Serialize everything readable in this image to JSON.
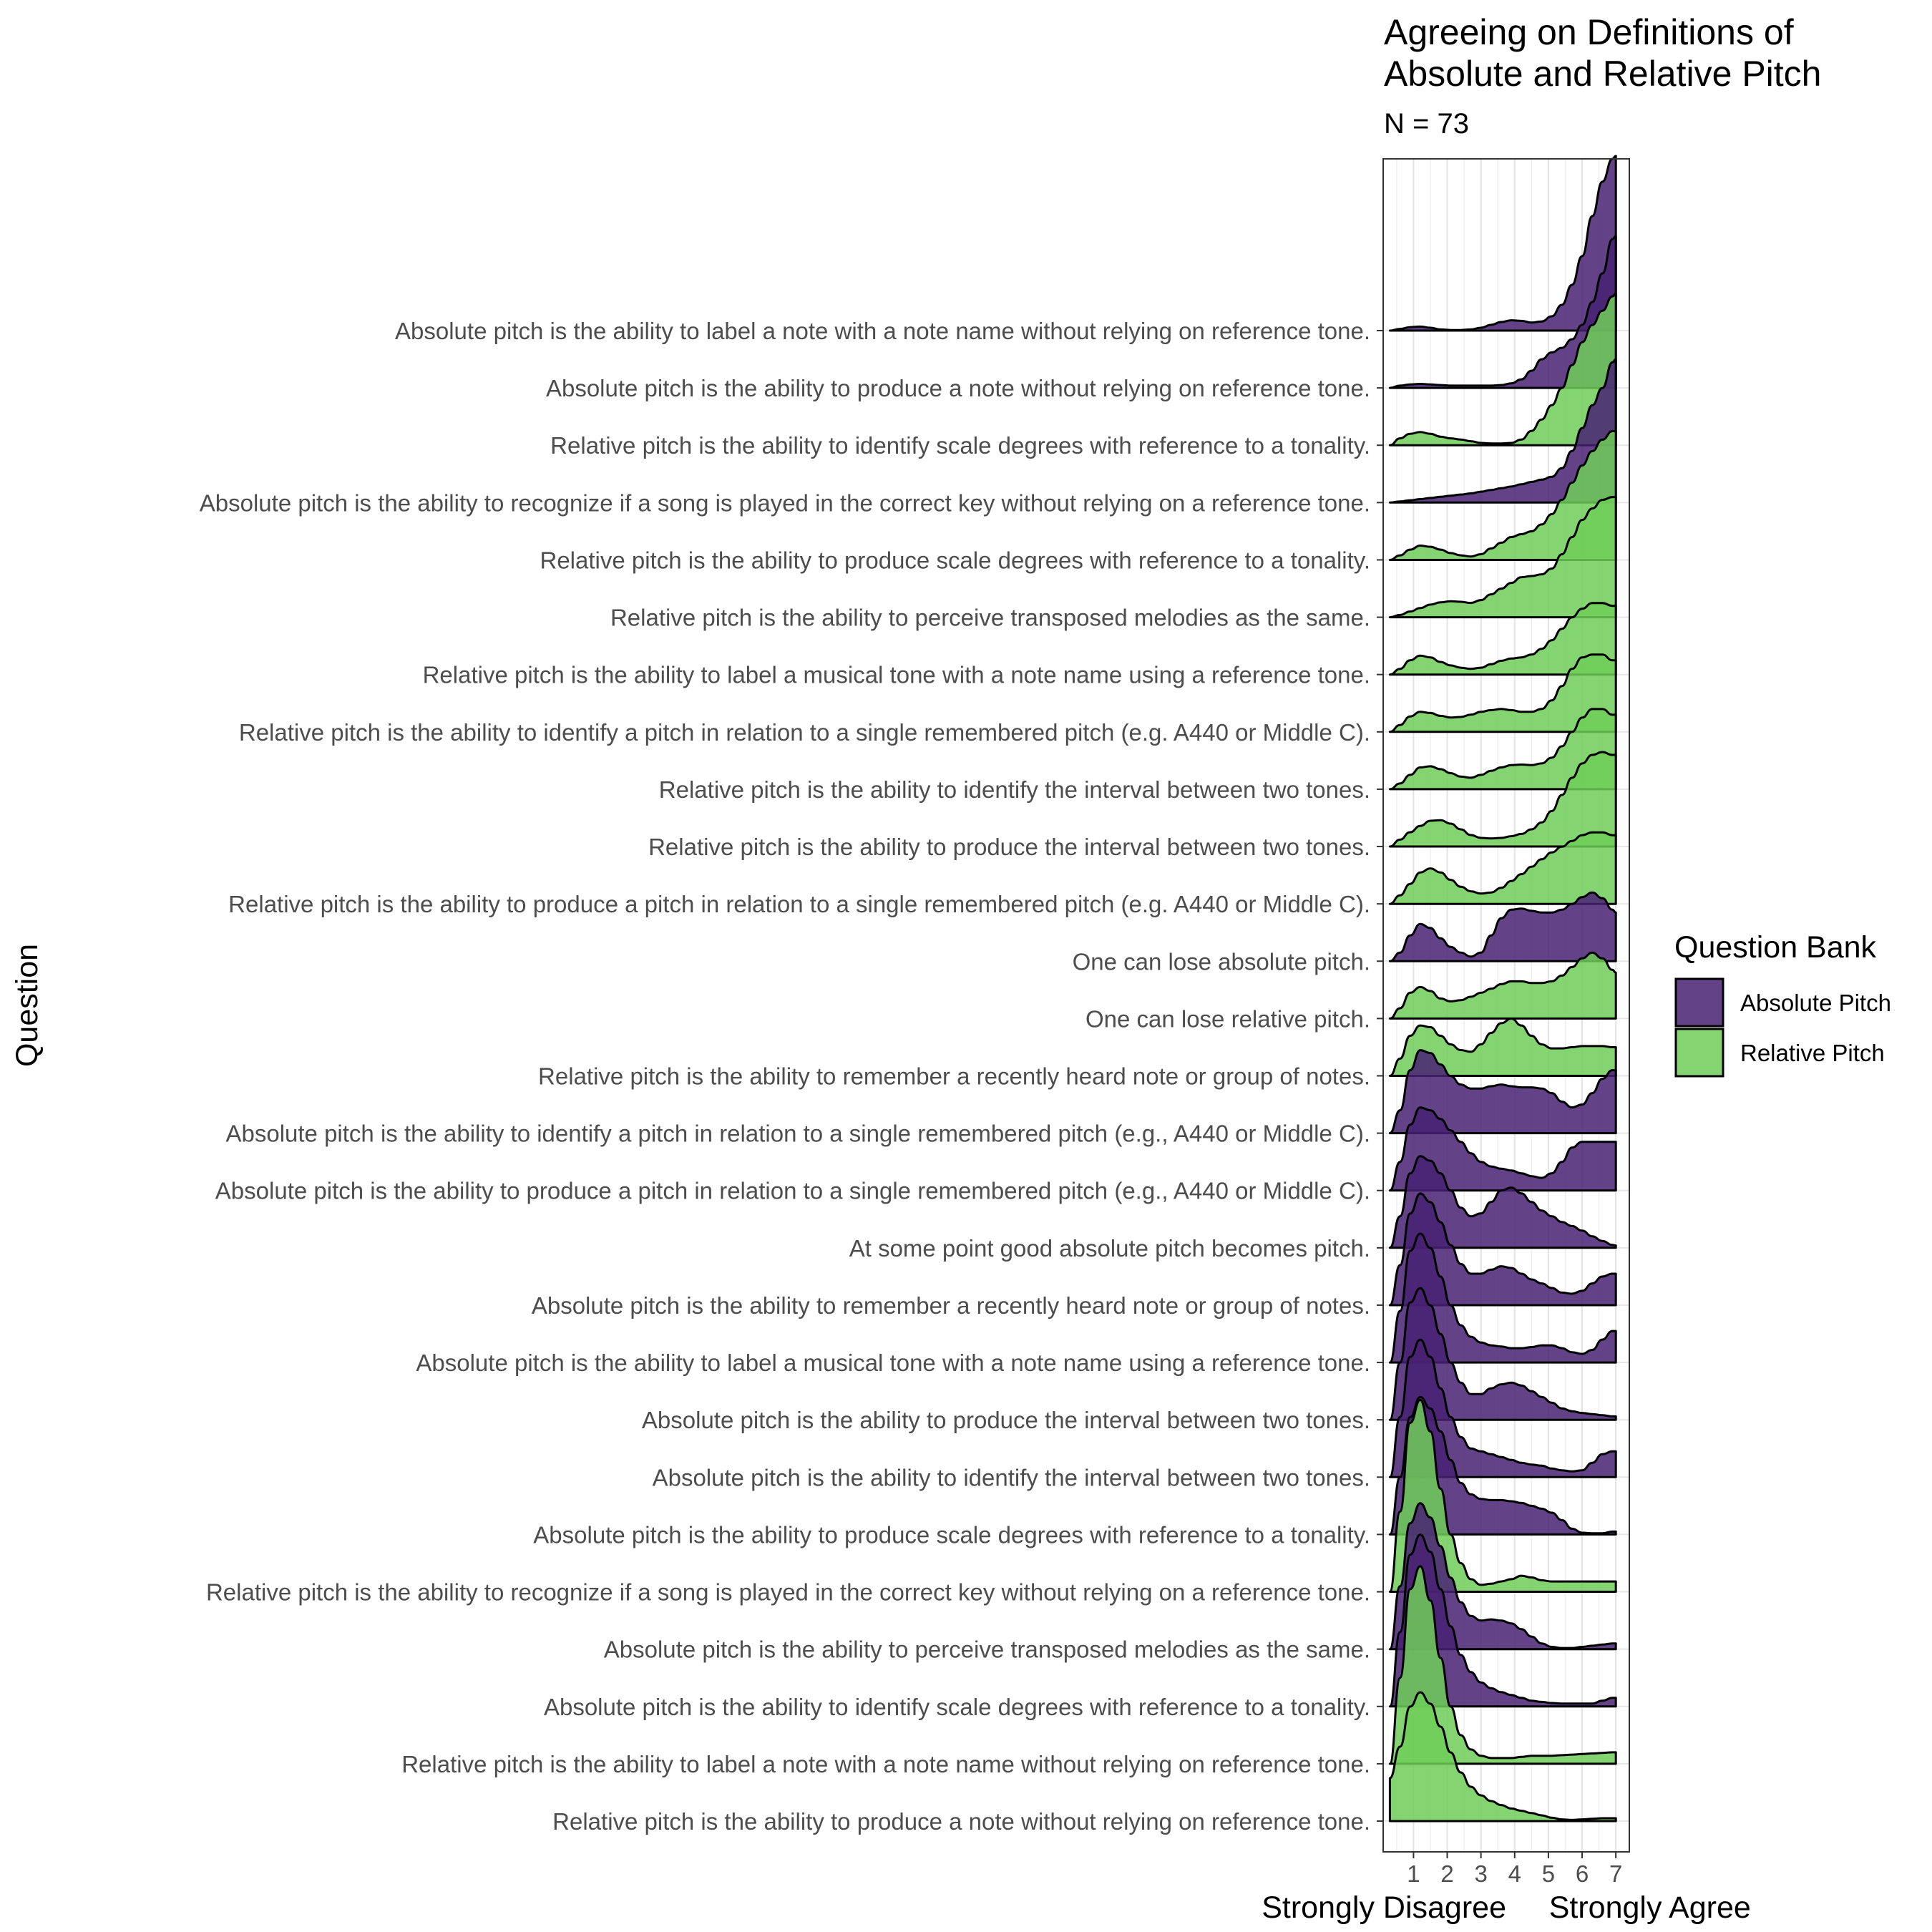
{
  "chart_data": {
    "type": "ridgeline-density",
    "title_lines": [
      "Agreeing on Definitions of",
      "Absolute and Relative Pitch"
    ],
    "subtitle": "N =  73",
    "xlabel": "Strongly Disagree     Strongly Agree",
    "ylabel": "Question",
    "x_ticks": [
      "1",
      "2",
      "3",
      "4",
      "5",
      "6",
      "7"
    ],
    "xlim": [
      0.1,
      7.4
    ],
    "legend": {
      "title": "Question Bank",
      "entries": [
        {
          "label": "Absolute Pitch",
          "color": "#482173"
        },
        {
          "label": "Relative Pitch",
          "color": "#6ece58"
        }
      ]
    },
    "colors": {
      "Absolute Pitch": "#482173",
      "Relative Pitch": "#6ece58",
      "grid": "#ebebeb",
      "outline": "#000000"
    },
    "x": [
      0.3,
      0.6,
      0.9,
      1.2,
      1.5,
      1.8,
      2.1,
      2.4,
      2.7,
      3.0,
      3.3,
      3.6,
      3.9,
      4.2,
      4.5,
      4.8,
      5.1,
      5.4,
      5.7,
      6.0,
      6.3,
      6.6,
      6.9,
      7.0
    ],
    "questions": [
      {
        "label": "Absolute pitch is the ability to label a note with a note name without relying on reference tone.",
        "bank": "Absolute Pitch",
        "density": [
          0.0,
          0.03,
          0.06,
          0.07,
          0.05,
          0.02,
          0.01,
          0.01,
          0.02,
          0.05,
          0.1,
          0.15,
          0.18,
          0.17,
          0.14,
          0.16,
          0.25,
          0.45,
          0.8,
          1.3,
          2.0,
          2.6,
          3.0,
          3.05
        ]
      },
      {
        "label": "Absolute pitch is the ability to produce a note without relying on reference tone.",
        "bank": "Absolute Pitch",
        "density": [
          0.0,
          0.04,
          0.06,
          0.07,
          0.06,
          0.05,
          0.04,
          0.04,
          0.04,
          0.04,
          0.04,
          0.05,
          0.08,
          0.15,
          0.3,
          0.5,
          0.62,
          0.7,
          0.85,
          1.1,
          1.5,
          2.0,
          2.6,
          2.65
        ]
      },
      {
        "label": "Relative pitch is the ability to identify scale degrees with reference to a tonality.",
        "bank": "Relative Pitch",
        "density": [
          0.0,
          0.12,
          0.2,
          0.23,
          0.2,
          0.15,
          0.12,
          0.1,
          0.07,
          0.04,
          0.03,
          0.03,
          0.04,
          0.1,
          0.25,
          0.45,
          0.7,
          1.0,
          1.4,
          1.8,
          2.1,
          2.35,
          2.6,
          2.65
        ]
      },
      {
        "label": "Absolute pitch is the ability to recognize if a song is played in the correct key without relying on a reference tone.",
        "bank": "Absolute Pitch",
        "density": [
          0.0,
          0.02,
          0.04,
          0.06,
          0.08,
          0.1,
          0.12,
          0.14,
          0.16,
          0.19,
          0.22,
          0.25,
          0.28,
          0.32,
          0.36,
          0.4,
          0.45,
          0.6,
          0.9,
          1.3,
          1.7,
          2.0,
          2.45,
          2.5
        ]
      },
      {
        "label": "Relative pitch is the ability to produce scale degrees with reference to a tonality.",
        "bank": "Relative Pitch",
        "density": [
          0.0,
          0.08,
          0.18,
          0.25,
          0.23,
          0.18,
          0.12,
          0.08,
          0.06,
          0.1,
          0.2,
          0.3,
          0.4,
          0.45,
          0.5,
          0.62,
          0.8,
          1.05,
          1.35,
          1.65,
          1.9,
          2.1,
          2.25,
          2.25
        ]
      },
      {
        "label": "Relative pitch is the ability to perceive transposed melodies as the same.",
        "bank": "Relative Pitch",
        "density": [
          0.0,
          0.04,
          0.1,
          0.16,
          0.22,
          0.26,
          0.28,
          0.27,
          0.25,
          0.3,
          0.4,
          0.5,
          0.6,
          0.7,
          0.72,
          0.75,
          0.85,
          1.1,
          1.4,
          1.7,
          1.9,
          2.05,
          2.1,
          2.1
        ]
      },
      {
        "label": "Relative pitch is the ability to label a musical tone with a note name using a reference tone.",
        "bank": "Relative Pitch",
        "density": [
          0.0,
          0.1,
          0.25,
          0.33,
          0.3,
          0.22,
          0.16,
          0.12,
          0.1,
          0.12,
          0.18,
          0.24,
          0.28,
          0.3,
          0.35,
          0.45,
          0.6,
          0.8,
          1.0,
          1.15,
          1.25,
          1.25,
          1.2,
          1.2
        ]
      },
      {
        "label": "Relative pitch is the ability to identify a pitch in relation to a single remembered pitch (e.g.  A440 or Middle C).",
        "bank": "Relative Pitch",
        "density": [
          0.0,
          0.12,
          0.27,
          0.35,
          0.33,
          0.28,
          0.25,
          0.26,
          0.3,
          0.35,
          0.38,
          0.4,
          0.38,
          0.35,
          0.35,
          0.4,
          0.55,
          0.8,
          1.1,
          1.3,
          1.35,
          1.35,
          1.25,
          1.25
        ]
      },
      {
        "label": "Relative pitch is the ability to identify the interval between two tones.",
        "bank": "Relative Pitch",
        "density": [
          0.0,
          0.1,
          0.25,
          0.38,
          0.4,
          0.35,
          0.28,
          0.22,
          0.2,
          0.25,
          0.32,
          0.38,
          0.42,
          0.43,
          0.42,
          0.45,
          0.55,
          0.75,
          1.0,
          1.25,
          1.4,
          1.4,
          1.3,
          1.3
        ]
      },
      {
        "label": "Relative pitch is the ability to produce the interval between two tones.",
        "bank": "Relative Pitch",
        "density": [
          0.0,
          0.12,
          0.25,
          0.36,
          0.45,
          0.46,
          0.4,
          0.3,
          0.2,
          0.15,
          0.14,
          0.15,
          0.18,
          0.22,
          0.3,
          0.42,
          0.62,
          0.9,
          1.2,
          1.45,
          1.6,
          1.65,
          1.6,
          1.6
        ]
      },
      {
        "label": "Relative pitch is the ability to produce a pitch in relation to a single remembered pitch (e.g. A440 or Middle C).",
        "bank": "Relative Pitch",
        "density": [
          0.0,
          0.15,
          0.35,
          0.55,
          0.62,
          0.55,
          0.42,
          0.3,
          0.22,
          0.18,
          0.2,
          0.28,
          0.4,
          0.52,
          0.65,
          0.78,
          0.9,
          1.0,
          1.1,
          1.2,
          1.25,
          1.25,
          1.2,
          1.2
        ]
      },
      {
        "label": "One can lose absolute pitch.",
        "bank": "Absolute Pitch",
        "density": [
          0.0,
          0.15,
          0.45,
          0.65,
          0.58,
          0.4,
          0.25,
          0.15,
          0.08,
          0.15,
          0.45,
          0.75,
          0.9,
          0.92,
          0.88,
          0.85,
          0.85,
          0.9,
          1.0,
          1.12,
          1.2,
          1.1,
          0.9,
          0.85
        ]
      },
      {
        "label": "One can lose relative pitch.",
        "bank": "Relative Pitch",
        "density": [
          0.0,
          0.18,
          0.45,
          0.55,
          0.48,
          0.35,
          0.3,
          0.32,
          0.38,
          0.45,
          0.52,
          0.6,
          0.65,
          0.65,
          0.62,
          0.62,
          0.65,
          0.75,
          0.9,
          1.05,
          1.15,
          1.05,
          0.85,
          0.8
        ]
      },
      {
        "label": "Relative pitch is the ability to remember a recently heard note or group of notes.",
        "bank": "Relative Pitch",
        "density": [
          0.0,
          0.3,
          0.7,
          0.88,
          0.85,
          0.7,
          0.55,
          0.45,
          0.42,
          0.55,
          0.75,
          0.92,
          1.0,
          0.88,
          0.7,
          0.55,
          0.48,
          0.48,
          0.5,
          0.52,
          0.52,
          0.52,
          0.5,
          0.5
        ]
      },
      {
        "label": "Absolute pitch is the ability to identify a pitch in relation to a single remembered pitch (e.g., A440 or Middle C).",
        "bank": "Absolute Pitch",
        "density": [
          0.0,
          0.4,
          1.1,
          1.45,
          1.4,
          1.2,
          1.0,
          0.85,
          0.78,
          0.78,
          0.82,
          0.85,
          0.82,
          0.8,
          0.8,
          0.78,
          0.7,
          0.55,
          0.45,
          0.5,
          0.7,
          0.95,
          1.1,
          1.1
        ]
      },
      {
        "label": "Absolute pitch is the ability to produce a pitch in relation to a single remembered pitch (e.g., A440 or Middle C).",
        "bank": "Absolute Pitch",
        "density": [
          0.0,
          0.5,
          1.15,
          1.45,
          1.4,
          1.25,
          1.05,
          0.85,
          0.65,
          0.5,
          0.42,
          0.38,
          0.35,
          0.3,
          0.25,
          0.22,
          0.3,
          0.5,
          0.75,
          0.85,
          0.85,
          0.85,
          0.85,
          0.85
        ]
      },
      {
        "label": "At some point good absolute pitch becomes pitch.",
        "bank": "Absolute Pitch",
        "density": [
          0.0,
          0.55,
          1.3,
          1.6,
          1.52,
          1.3,
          1.0,
          0.7,
          0.55,
          0.6,
          0.8,
          1.0,
          1.05,
          0.95,
          0.8,
          0.65,
          0.55,
          0.45,
          0.38,
          0.3,
          0.2,
          0.12,
          0.05,
          0.04
        ]
      },
      {
        "label": "Absolute pitch is the ability to remember a recently heard note or group of notes.",
        "bank": "Absolute Pitch",
        "density": [
          0.0,
          0.7,
          1.6,
          1.95,
          1.8,
          1.45,
          1.05,
          0.72,
          0.55,
          0.55,
          0.62,
          0.68,
          0.65,
          0.55,
          0.45,
          0.38,
          0.3,
          0.22,
          0.2,
          0.25,
          0.38,
          0.5,
          0.55,
          0.55
        ]
      },
      {
        "label": "Absolute pitch is the ability to label a musical tone with a note name using a reference tone.",
        "bank": "Absolute Pitch",
        "density": [
          0.0,
          0.9,
          1.95,
          2.25,
          2.0,
          1.5,
          1.0,
          0.65,
          0.45,
          0.35,
          0.3,
          0.28,
          0.25,
          0.25,
          0.27,
          0.3,
          0.3,
          0.25,
          0.18,
          0.15,
          0.22,
          0.4,
          0.55,
          0.55
        ]
      },
      {
        "label": "Absolute pitch is the ability to produce the interval between two tones.",
        "bank": "Absolute Pitch",
        "density": [
          0.0,
          1.0,
          2.05,
          2.3,
          2.0,
          1.5,
          1.0,
          0.65,
          0.45,
          0.45,
          0.55,
          0.62,
          0.65,
          0.6,
          0.5,
          0.4,
          0.3,
          0.2,
          0.15,
          0.12,
          0.1,
          0.08,
          0.06,
          0.06
        ]
      },
      {
        "label": "Absolute pitch is the ability to identify the interval between two tones.",
        "bank": "Absolute Pitch",
        "density": [
          0.0,
          1.05,
          2.1,
          2.4,
          2.1,
          1.55,
          1.05,
          0.7,
          0.5,
          0.45,
          0.4,
          0.35,
          0.3,
          0.25,
          0.22,
          0.2,
          0.15,
          0.12,
          0.1,
          0.12,
          0.25,
          0.4,
          0.45,
          0.45
        ]
      },
      {
        "label": "Absolute pitch is the ability to produce scale degrees with reference to a tonality.",
        "bank": "Absolute Pitch",
        "density": [
          0.0,
          1.0,
          2.05,
          2.4,
          2.2,
          1.8,
          1.3,
          0.9,
          0.7,
          0.62,
          0.6,
          0.6,
          0.58,
          0.55,
          0.5,
          0.45,
          0.38,
          0.25,
          0.1,
          0.03,
          0.02,
          0.02,
          0.05,
          0.05
        ]
      },
      {
        "label": "Relative pitch is the ability to recognize if a song is played in the correct key without relying on a reference tone.",
        "bank": "Relative Pitch",
        "density": [
          0.0,
          1.4,
          2.95,
          3.35,
          2.8,
          1.8,
          1.0,
          0.5,
          0.22,
          0.12,
          0.14,
          0.18,
          0.22,
          0.28,
          0.25,
          0.2,
          0.18,
          0.18,
          0.18,
          0.18,
          0.18,
          0.18,
          0.18,
          0.18
        ]
      },
      {
        "label": "Absolute pitch is the ability to perceive transposed melodies as the same.",
        "bank": "Absolute Pitch",
        "density": [
          0.0,
          1.1,
          2.2,
          2.55,
          2.3,
          1.8,
          1.25,
          0.82,
          0.58,
          0.5,
          0.52,
          0.5,
          0.45,
          0.35,
          0.22,
          0.1,
          0.04,
          0.02,
          0.02,
          0.04,
          0.06,
          0.08,
          0.1,
          0.1
        ]
      },
      {
        "label": "Absolute pitch is the ability to identify scale degrees with reference to a tonality.",
        "bank": "Absolute Pitch",
        "density": [
          0.0,
          1.3,
          2.65,
          3.0,
          2.7,
          2.05,
          1.4,
          0.9,
          0.6,
          0.42,
          0.32,
          0.25,
          0.2,
          0.15,
          0.1,
          0.08,
          0.06,
          0.05,
          0.05,
          0.05,
          0.05,
          0.1,
          0.15,
          0.15
        ]
      },
      {
        "label": "Relative pitch is the ability to label a note with a note name without relying on reference tone.",
        "bank": "Relative Pitch",
        "density": [
          0.0,
          1.5,
          3.05,
          3.45,
          2.85,
          1.85,
          1.0,
          0.5,
          0.25,
          0.14,
          0.1,
          0.1,
          0.1,
          0.12,
          0.14,
          0.14,
          0.14,
          0.15,
          0.16,
          0.17,
          0.18,
          0.19,
          0.2,
          0.2
        ]
      },
      {
        "label": "Relative pitch is the ability to produce a note without relying on reference tone.",
        "bank": "Relative Pitch",
        "density": [
          0.75,
          1.3,
          2.0,
          2.25,
          2.05,
          1.65,
          1.2,
          0.85,
          0.6,
          0.45,
          0.35,
          0.28,
          0.22,
          0.18,
          0.14,
          0.1,
          0.06,
          0.03,
          0.02,
          0.03,
          0.04,
          0.05,
          0.05,
          0.05
        ]
      }
    ]
  }
}
